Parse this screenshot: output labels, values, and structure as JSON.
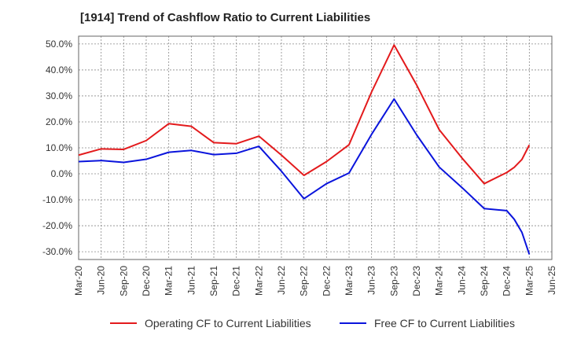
{
  "chart_data": {
    "type": "line",
    "title": "[1914]  Trend of Cashflow Ratio to Current Liabilities",
    "xlabel": "",
    "ylabel": "",
    "ylim": [
      -33,
      53
    ],
    "y_ticks": [
      "50.0%",
      "40.0%",
      "30.0%",
      "20.0%",
      "10.0%",
      "0.0%",
      "-10.0%",
      "-20.0%",
      "-30.0%"
    ],
    "y_tick_values": [
      50,
      40,
      30,
      20,
      10,
      0,
      -10,
      -20,
      -30
    ],
    "x_ticks": [
      "Mar-20",
      "Jun-20",
      "Sep-20",
      "Dec-20",
      "Mar-21",
      "Jun-21",
      "Sep-21",
      "Dec-21",
      "Mar-22",
      "Jun-22",
      "Sep-22",
      "Dec-22",
      "Mar-23",
      "Jun-23",
      "Sep-23",
      "Dec-23",
      "Mar-24",
      "Jun-24",
      "Sep-24",
      "Dec-24",
      "Mar-25",
      "Jun-25"
    ],
    "grid": true,
    "legend_position": "bottom",
    "series": [
      {
        "name": "Operating CF to Current Liabilities",
        "color": "#e31a1c",
        "points": [
          [
            0,
            7.2
          ],
          [
            1,
            9.6
          ],
          [
            2,
            9.4
          ],
          [
            3,
            12.8
          ],
          [
            4,
            19.3
          ],
          [
            5,
            18.3
          ],
          [
            6,
            12.0
          ],
          [
            7,
            11.6
          ],
          [
            8,
            14.5
          ],
          [
            9,
            7.2
          ],
          [
            10,
            -0.6
          ],
          [
            11,
            4.7
          ],
          [
            12,
            11.2
          ],
          [
            13,
            31.5
          ],
          [
            14,
            49.6
          ],
          [
            15,
            34.2
          ],
          [
            16,
            17.0
          ],
          [
            17,
            6.2
          ],
          [
            18,
            -3.8
          ],
          [
            19,
            0.5
          ],
          [
            19.33,
            2.5
          ],
          [
            19.67,
            5.5
          ],
          [
            20,
            11.1
          ]
        ]
      },
      {
        "name": "Free CF to Current Liabilities",
        "color": "#0a14dc",
        "points": [
          [
            0,
            4.7
          ],
          [
            1,
            5.1
          ],
          [
            2,
            4.4
          ],
          [
            3,
            5.6
          ],
          [
            4,
            8.3
          ],
          [
            5,
            9.0
          ],
          [
            6,
            7.4
          ],
          [
            7,
            7.9
          ],
          [
            8,
            10.6
          ],
          [
            9,
            1.0
          ],
          [
            10,
            -9.6
          ],
          [
            11,
            -3.8
          ],
          [
            12,
            0.3
          ],
          [
            13,
            15.2
          ],
          [
            14,
            28.8
          ],
          [
            15,
            15.0
          ],
          [
            16,
            2.6
          ],
          [
            17,
            -5.2
          ],
          [
            18,
            -13.4
          ],
          [
            19,
            -14.2
          ],
          [
            19.33,
            -17.5
          ],
          [
            19.67,
            -22.5
          ],
          [
            20,
            -31.0
          ]
        ]
      }
    ]
  }
}
